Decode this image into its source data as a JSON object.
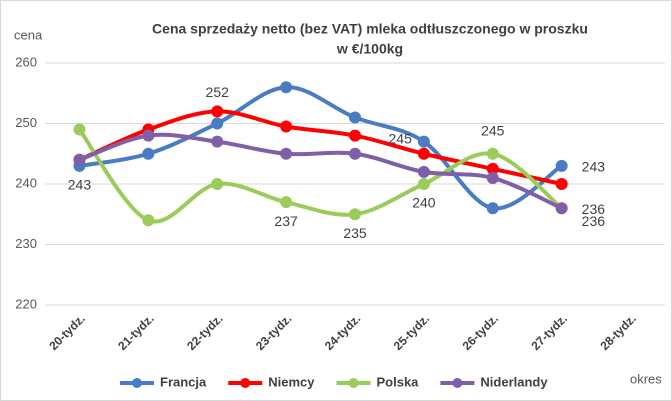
{
  "chart_data": {
    "type": "line",
    "title": "Cena sprzedaży netto (bez VAT) mleka odtłuszczonego w proszku",
    "subtitle": "w €/100kg",
    "y_label": "cena",
    "x_label": "okres",
    "categories": [
      "20-tydz.",
      "21-tydz.",
      "22-tydz.",
      "23-tydz.",
      "24-tydz.",
      "25-tydz.",
      "26-tydz.",
      "27-tydz.",
      "28-tydz."
    ],
    "series": [
      {
        "name": "Francja",
        "color": "#4a7cc4",
        "values": [
          243,
          245,
          250,
          256,
          251,
          247,
          236,
          243,
          null
        ],
        "value_labels": [
          "243",
          null,
          null,
          null,
          null,
          null,
          null,
          "243",
          null
        ]
      },
      {
        "name": "Niemcy",
        "color": "#ff0000",
        "values": [
          244,
          249,
          252,
          249.5,
          248,
          245,
          242.5,
          240,
          null
        ],
        "value_labels": [
          null,
          null,
          "252",
          null,
          null,
          "245",
          null,
          null,
          null
        ]
      },
      {
        "name": "Polska",
        "color": "#9bcb5a",
        "values": [
          249,
          234,
          240,
          237,
          235,
          240,
          245,
          236,
          null
        ],
        "value_labels": [
          null,
          null,
          null,
          "237",
          "235",
          "240",
          "245",
          "236",
          null
        ]
      },
      {
        "name": "Niderlandy",
        "color": "#7f5fa8",
        "values": [
          244,
          248,
          247,
          245,
          245,
          242,
          241,
          236,
          null
        ],
        "value_labels": [
          null,
          null,
          null,
          null,
          null,
          null,
          null,
          "236",
          null
        ]
      }
    ],
    "ylim": [
      220,
      260
    ],
    "yticks": [
      220,
      230,
      240,
      250,
      260
    ],
    "grid": true,
    "smooth": true,
    "legend": "bottom"
  }
}
